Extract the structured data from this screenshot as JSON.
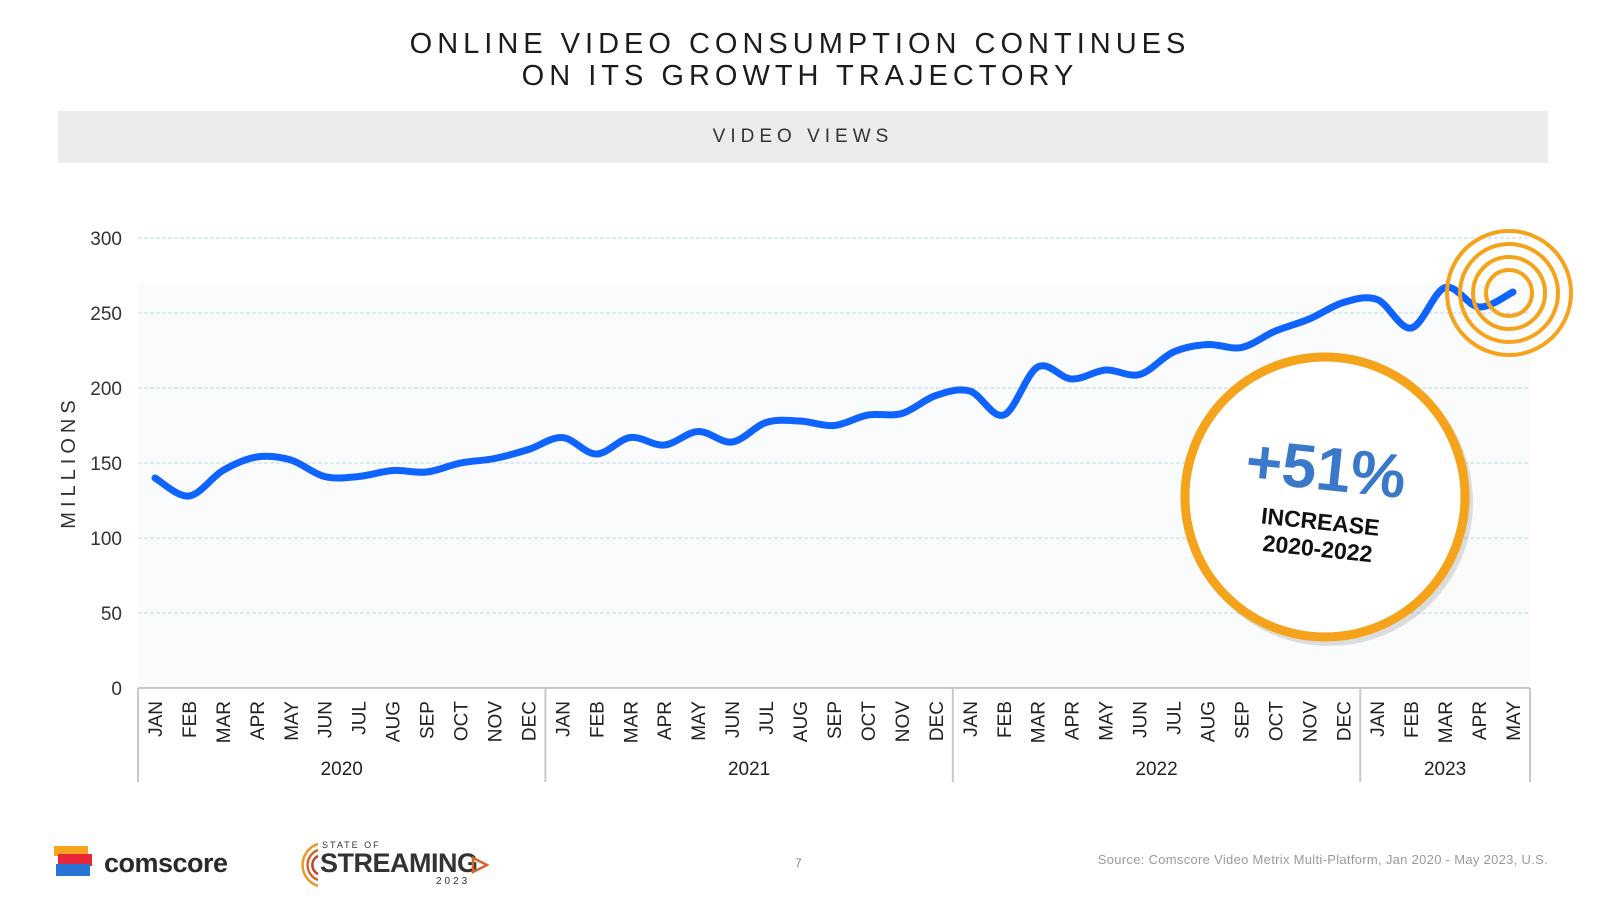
{
  "slide": {
    "title_line1": "ONLINE VIDEO CONSUMPTION CONTINUES",
    "title_line2": "ON ITS GROWTH TRAJECTORY",
    "banner": "VIDEO VIEWS",
    "page_number": "7",
    "source": "Source: Comscore Video Metrix Multi-Platform, Jan 2020 - May 2023, U.S."
  },
  "brand": {
    "comscore": "comscore",
    "sos_small": "STATE OF",
    "sos_main": "STREAMING",
    "sos_year": "2023"
  },
  "callout": {
    "big": "+51%",
    "line1": "INCREASE",
    "line2": "2020-2022"
  },
  "colors": {
    "line": "#0f63ff",
    "ring": "#f5a31b",
    "grid": "#b9dbe6",
    "callout_text": "#3a78c9"
  },
  "chart_data": {
    "type": "line",
    "ylabel": "MILLIONS",
    "ylim": [
      0,
      300
    ],
    "yticks": [
      0,
      50,
      100,
      150,
      200,
      250,
      300
    ],
    "grid": true,
    "months": [
      "JAN",
      "FEB",
      "MAR",
      "APR",
      "MAY",
      "JUN",
      "JUL",
      "AUG",
      "SEP",
      "OCT",
      "NOV",
      "DEC",
      "JAN",
      "FEB",
      "MAR",
      "APR",
      "MAY",
      "JUN",
      "JUL",
      "AUG",
      "SEP",
      "OCT",
      "NOV",
      "DEC",
      "JAN",
      "FEB",
      "MAR",
      "APR",
      "MAY",
      "JUN",
      "JUL",
      "AUG",
      "SEP",
      "OCT",
      "NOV",
      "DEC",
      "JAN",
      "FEB",
      "MAR",
      "APR",
      "MAY"
    ],
    "years": [
      {
        "label": "2020",
        "count": 12
      },
      {
        "label": "2021",
        "count": 12
      },
      {
        "label": "2022",
        "count": 12
      },
      {
        "label": "2023",
        "count": 5
      }
    ],
    "series": [
      {
        "values": [
          140,
          128,
          145,
          154,
          152,
          141,
          141,
          145,
          144,
          150,
          153,
          159,
          167,
          156,
          167,
          162,
          171,
          164,
          177,
          178,
          175,
          182,
          183,
          195,
          198,
          182,
          214,
          206,
          212,
          209,
          224,
          229,
          227,
          238,
          246,
          257,
          259,
          240,
          267,
          254,
          264
        ]
      }
    ]
  }
}
